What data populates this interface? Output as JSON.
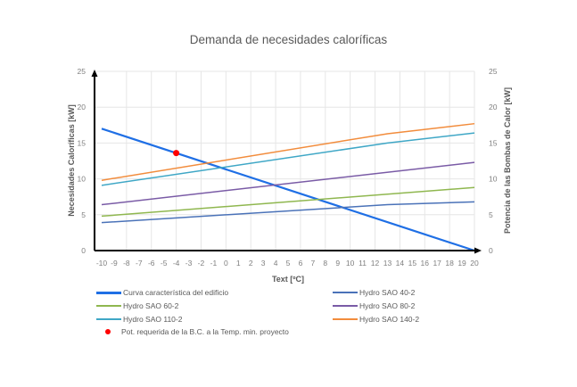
{
  "chart_data": {
    "type": "line",
    "title": "Demanda de necesidades caloríficas",
    "xlabel": "Text [ºC]",
    "ylabel": "Necesidades Caloríficas [kW]",
    "y2label": "Potencia de las Bombas de Calor [kW]",
    "xlim": [
      -10,
      20
    ],
    "ylim": [
      0,
      25
    ],
    "y2lim": [
      0,
      25
    ],
    "x_ticks": [
      "-10",
      "-9",
      "-8",
      "-7",
      "-6",
      "-5",
      "-4",
      "-3",
      "-2",
      "-1",
      "0",
      "1",
      "2",
      "3",
      "4",
      "5",
      "6",
      "7",
      "8",
      "9",
      "10",
      "11",
      "12",
      "13",
      "14",
      "15",
      "16",
      "17",
      "18",
      "19",
      "20"
    ],
    "y_ticks": [
      "0",
      "5",
      "10",
      "15",
      "20",
      "25"
    ],
    "grid": true,
    "legend_position": "bottom",
    "series": [
      {
        "name": "Curva característica del edificio",
        "color": "#1f6fe5",
        "width": 2.2,
        "x": [
          -10,
          20
        ],
        "y": [
          17.0,
          0.0
        ]
      },
      {
        "name": "Hydro SAO 40-2",
        "color": "#4a72b8",
        "width": 1.5,
        "x": [
          -10,
          13,
          20
        ],
        "y": [
          3.9,
          6.4,
          6.8
        ]
      },
      {
        "name": "Hydro SAO 60-2",
        "color": "#8fb74f",
        "width": 1.5,
        "x": [
          -10,
          20
        ],
        "y": [
          4.8,
          8.8
        ]
      },
      {
        "name": "Hydro SAO 80-2",
        "color": "#7a5ba6",
        "width": 1.5,
        "x": [
          -10,
          20
        ],
        "y": [
          6.4,
          12.3
        ]
      },
      {
        "name": "Hydro SAO 110-2",
        "color": "#3fa7c6",
        "width": 1.5,
        "x": [
          -10,
          13,
          20
        ],
        "y": [
          9.1,
          15.0,
          16.4
        ]
      },
      {
        "name": "Hydro SAO 140-2",
        "color": "#f28c3c",
        "width": 1.5,
        "x": [
          -10,
          13,
          20
        ],
        "y": [
          9.8,
          16.3,
          17.7
        ]
      }
    ],
    "points": [
      {
        "name": "Pot. requerida de la B.C. a la Temp. min. proyecto",
        "color": "#ff0000",
        "x": -4,
        "y": 13.6
      }
    ]
  },
  "legend": {
    "items": [
      {
        "label": "Curva característica del edificio",
        "color": "#1f6fe5",
        "kind": "line"
      },
      {
        "label": "Hydro SAO 40-2",
        "color": "#4a72b8",
        "kind": "line"
      },
      {
        "label": "Hydro SAO 60-2",
        "color": "#8fb74f",
        "kind": "line"
      },
      {
        "label": "Hydro SAO 80-2",
        "color": "#7a5ba6",
        "kind": "line"
      },
      {
        "label": "Hydro SAO 110-2",
        "color": "#3fa7c6",
        "kind": "line"
      },
      {
        "label": "Hydro SAO 140-2",
        "color": "#f28c3c",
        "kind": "line"
      },
      {
        "label": "Pot. requerida de la B.C. a la Temp. min. proyecto",
        "color": "#ff0000",
        "kind": "dot"
      }
    ]
  }
}
